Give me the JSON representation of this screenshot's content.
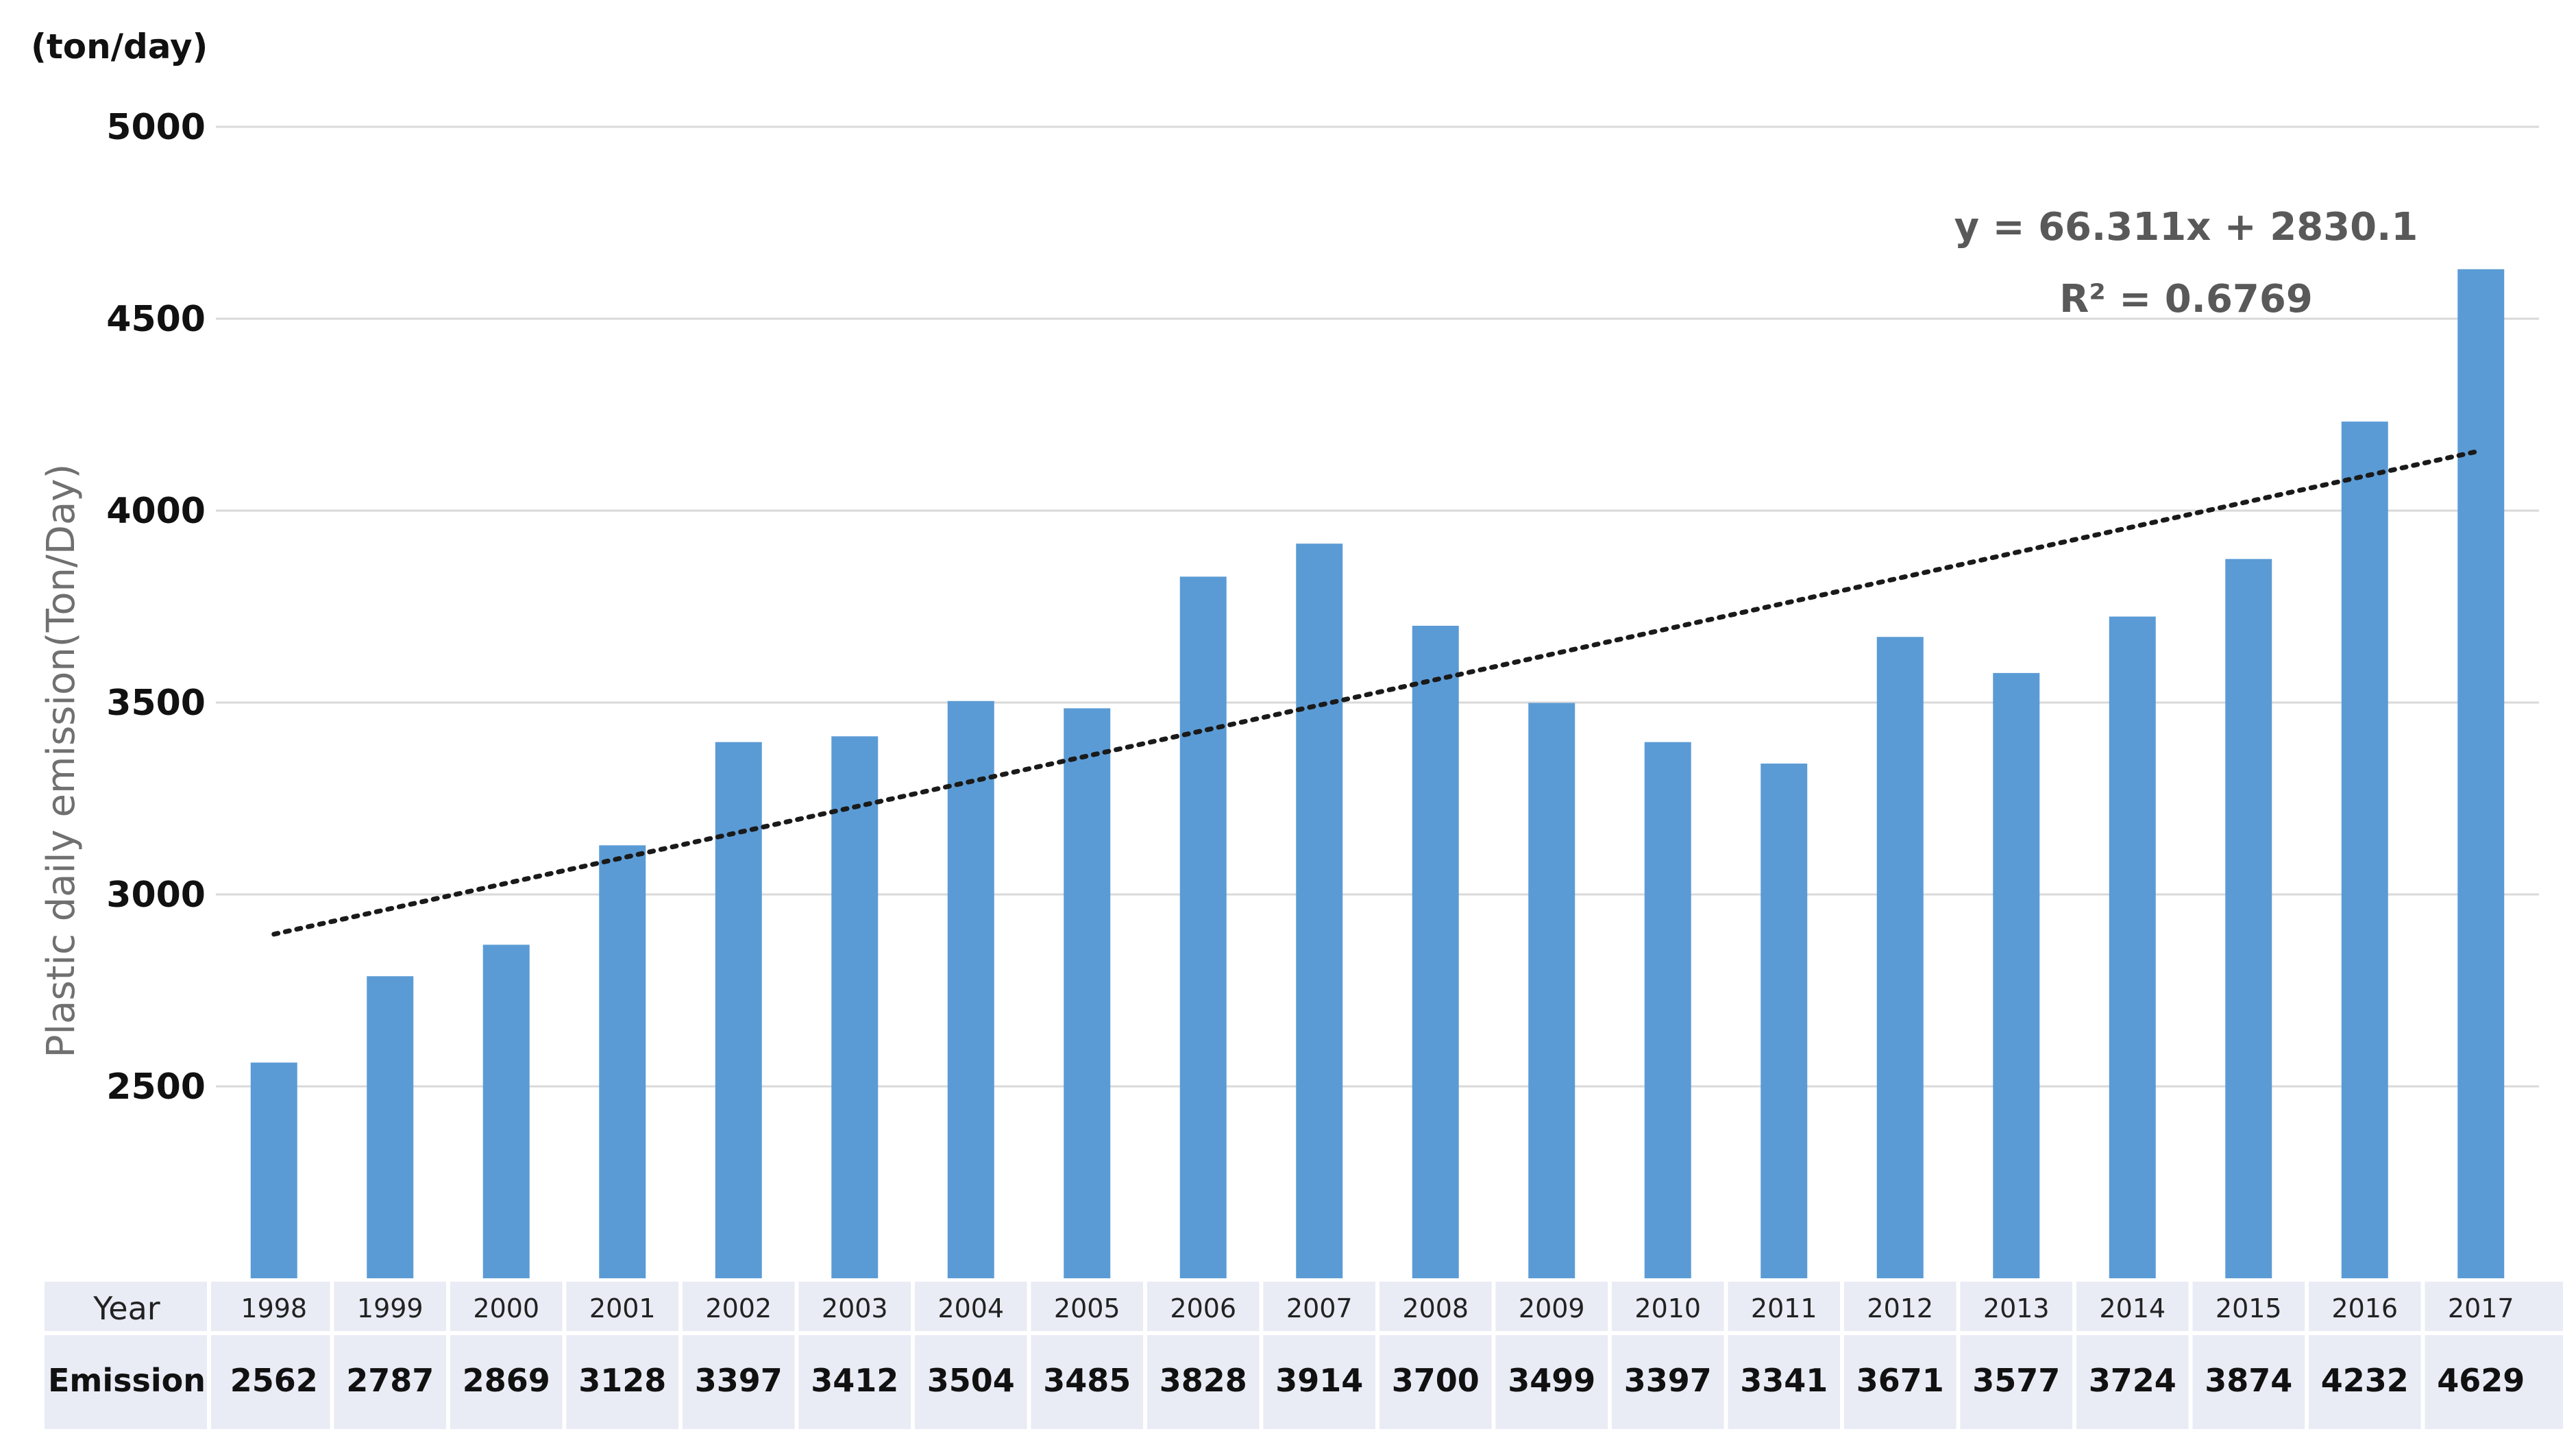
{
  "chart_data": {
    "type": "bar",
    "unit_label": "(ton/day)",
    "ylabel": "Plastic daily emission(Ton/Day)",
    "xlabel": "",
    "ylim": [
      2000,
      5000
    ],
    "yticks": [
      2500,
      3000,
      3500,
      4000,
      4500,
      5000
    ],
    "grid": true,
    "categories": [
      "1998",
      "1999",
      "2000",
      "2001",
      "2002",
      "2003",
      "2004",
      "2005",
      "2006",
      "2007",
      "2008",
      "2009",
      "2010",
      "2011",
      "2012",
      "2013",
      "2014",
      "2015",
      "2016",
      "2017"
    ],
    "series": [
      {
        "name": "Emission",
        "values": [
          2562,
          2787,
          2869,
          3128,
          3397,
          3412,
          3504,
          3485,
          3828,
          3914,
          3700,
          3499,
          3397,
          3341,
          3671,
          3577,
          3724,
          3874,
          4232,
          4629
        ],
        "color": "#5b9bd5"
      }
    ],
    "trendline": {
      "type": "linear",
      "slope": 66.311,
      "intercept": 2830.1,
      "equation_label": "y = 66.311x + 2830.1",
      "r2_label": "R² = 0.6769"
    },
    "data_table": {
      "row_headers": [
        "Year",
        "Emission"
      ]
    }
  }
}
